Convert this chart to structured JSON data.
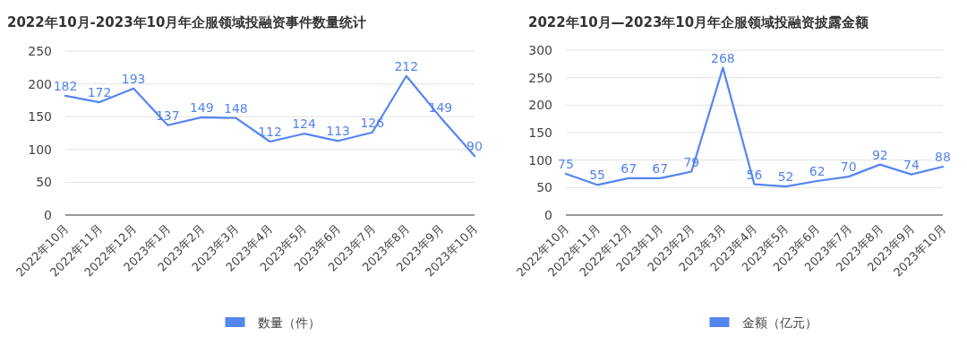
{
  "chart_data": [
    {
      "type": "line",
      "title": "2022年10月-2023年10月年企服领域投融资事件数量统计",
      "categories": [
        "2022年10月",
        "2022年11月",
        "2022年12月",
        "2023年1月",
        "2023年2月",
        "2023年3月",
        "2023年4月",
        "2023年5月",
        "2023年6月",
        "2023年7月",
        "2023年8月",
        "2023年9月",
        "2023年10月"
      ],
      "series": [
        {
          "name": "数量（件）",
          "color": "#5585ee",
          "values": [
            182,
            172,
            193,
            137,
            149,
            148,
            112,
            124,
            113,
            126,
            212,
            149,
            90
          ]
        }
      ],
      "ylim": [
        0,
        250
      ],
      "yticks": [
        0,
        50,
        100,
        150,
        200,
        250
      ],
      "grid": "y",
      "legend": "bottom",
      "data_labels": true
    },
    {
      "type": "line",
      "title": "2022年10月—2023年10月年企服领域投融资披露金额",
      "categories": [
        "2022年10月",
        "2022年11月",
        "2022年12月",
        "2023年1月",
        "2023年2月",
        "2023年3月",
        "2023年4月",
        "2023年5月",
        "2023年6月",
        "2023年7月",
        "2023年8月",
        "2023年9月",
        "2023年10月"
      ],
      "series": [
        {
          "name": "金额（亿元）",
          "color": "#5585ee",
          "values": [
            75,
            55,
            67,
            67,
            79,
            268,
            56,
            52,
            62,
            70,
            92,
            74,
            88
          ]
        }
      ],
      "ylim": [
        0,
        300
      ],
      "yticks": [
        0,
        50,
        100,
        150,
        200,
        250,
        300
      ],
      "grid": "y",
      "legend": "bottom",
      "data_labels": true
    }
  ]
}
